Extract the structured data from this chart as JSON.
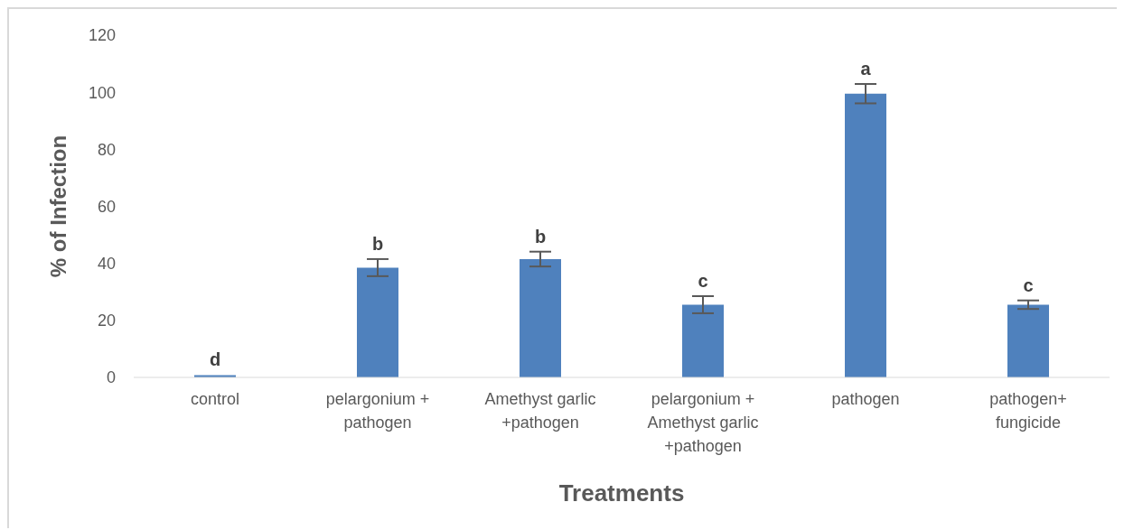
{
  "chart_data": {
    "type": "bar",
    "xlabel": "Treatments",
    "ylabel": "% of Infection",
    "categories": [
      "control",
      "pelargonium + pathogen",
      "Amethyst garlic +pathogen",
      "pelargonium + Amethyst garlic +pathogen",
      "pathogen",
      "pathogen+ fungicide"
    ],
    "values": [
      0.8,
      38.5,
      41.5,
      25.5,
      99.5,
      25.5
    ],
    "errors": [
      null,
      3,
      2.6,
      3,
      3.4,
      1.5
    ],
    "color": "#4f81bd",
    "ylim": [
      0,
      120
    ],
    "yticks": [
      0,
      20,
      40,
      60,
      80,
      100,
      120
    ],
    "grid": false,
    "legend": false,
    "annotations": [
      {
        "text": "d",
        "x": "control",
        "y": 0.8
      },
      {
        "text": "b",
        "x": "pelargonium + pathogen",
        "y": 41.5
      },
      {
        "text": "b",
        "x": "Amethyst garlic +pathogen",
        "y": 44.1
      },
      {
        "text": "c",
        "x": "pelargonium + Amethyst garlic +pathogen",
        "y": 28.5
      },
      {
        "text": "a",
        "x": "pathogen",
        "y": 102.9
      },
      {
        "text": "c",
        "x": "pathogen+ fungicide",
        "y": 27
      }
    ]
  }
}
